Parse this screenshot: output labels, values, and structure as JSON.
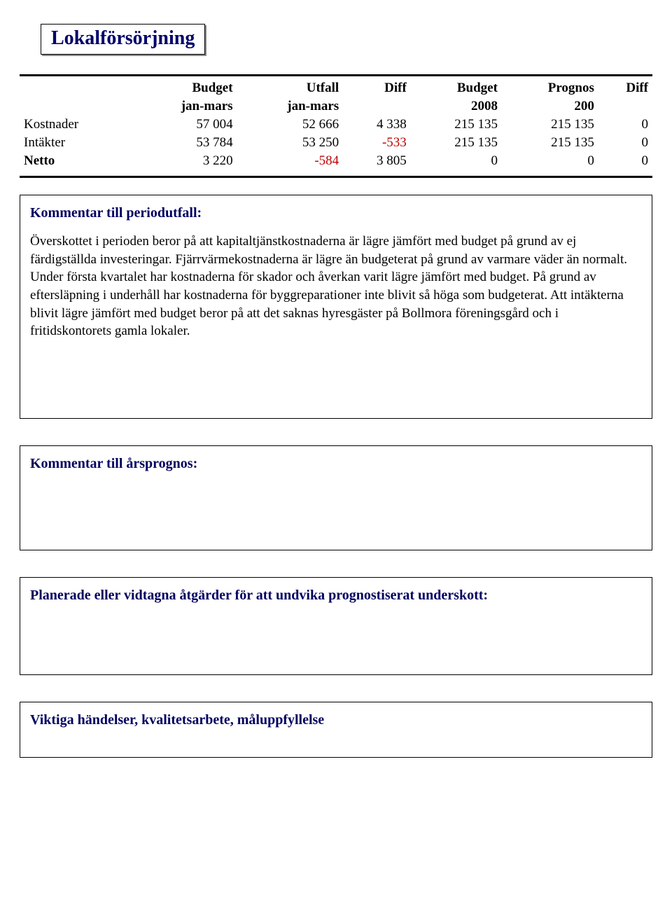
{
  "title": "Lokalförsörjning",
  "table": {
    "header_row1": [
      "",
      "Budget",
      "Utfall",
      "Diff",
      "Budget",
      "Prognos",
      "Diff"
    ],
    "header_row2": [
      "",
      "jan-mars",
      "jan-mars",
      "",
      "2008",
      "200",
      ""
    ],
    "rows": [
      {
        "label": "Kostnader",
        "cells": [
          "57 004",
          "52 666",
          "4 338",
          "215 135",
          "215 135",
          "0"
        ],
        "neg": [
          false,
          false,
          false,
          false,
          false,
          false
        ]
      },
      {
        "label": "Intäkter",
        "cells": [
          "53 784",
          "53 250",
          "-533",
          "215 135",
          "215 135",
          "0"
        ],
        "neg": [
          false,
          false,
          true,
          false,
          false,
          false
        ]
      },
      {
        "label": "Netto",
        "cells": [
          "3 220",
          "-584",
          "3 805",
          "0",
          "0",
          "0"
        ],
        "neg": [
          false,
          true,
          false,
          false,
          false,
          false
        ],
        "bold": true
      }
    ]
  },
  "sections": {
    "periodutfall": {
      "title": "Kommentar till periodutfall:",
      "body": "Överskottet i perioden beror på att kapitaltjänstkostnaderna är lägre jämfört med budget på grund av ej färdigställda investeringar. Fjärrvärmekostnaderna är lägre än budgeterat på grund av varmare väder än normalt. Under första kvartalet har kostnaderna för skador och åverkan varit lägre jämfört med budget. På grund av eftersläpning i underhåll har kostnaderna för byggreparationer inte blivit så höga som budgeterat. Att intäkterna blivit lägre jämfört med budget beror på att det saknas hyresgäster på Bollmora föreningsgård och i fritidskontorets gamla lokaler."
    },
    "arsprognos": {
      "title": "Kommentar till årsprognos:",
      "body": ""
    },
    "atgarder": {
      "title": "Planerade eller vidtagna åtgärder för att undvika prognostiserat underskott:",
      "body": ""
    },
    "viktiga": {
      "title": "Viktiga händelser, kvalitetsarbete, måluppfyllelse",
      "body": ""
    }
  }
}
